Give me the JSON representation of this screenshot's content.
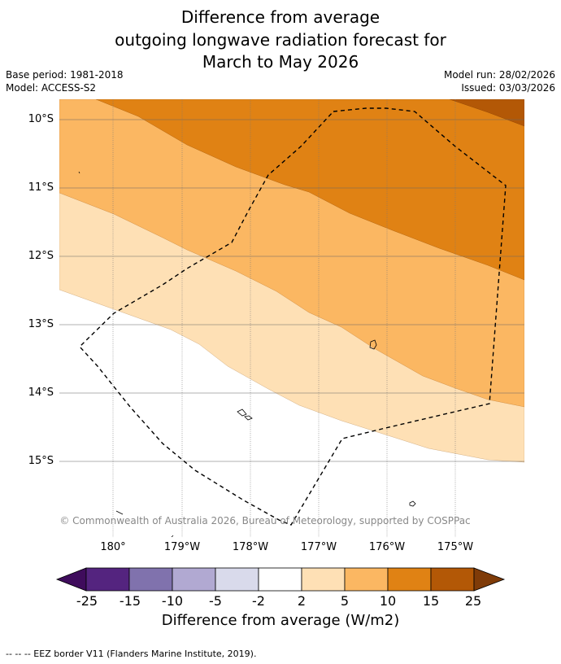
{
  "title_lines": [
    "Difference from average",
    "outgoing longwave radiation forecast for",
    "March to May 2026"
  ],
  "meta": {
    "base_period": "Base period: 1981-2018",
    "model": "Model: ACCESS-S2",
    "model_run": "Model run: 28/02/2026",
    "issued": "Issued: 03/03/2026"
  },
  "lat_labels": [
    "10°S",
    "11°S",
    "12°S",
    "13°S",
    "14°S",
    "15°S"
  ],
  "lon_labels": [
    "180°",
    "179°W",
    "178°W",
    "177°W",
    "176°W",
    "175°W"
  ],
  "attribution": "© Commonwealth of Australia 2026, Bureau of Meteorology, supported by COSPPac",
  "colorbar": {
    "title": "Difference from average (W/m2)",
    "ticks": [
      "-25",
      "-15",
      "-10",
      "-5",
      "-2",
      "2",
      "5",
      "10",
      "15",
      "25"
    ],
    "colors": [
      "#3f0c5c",
      "#54247f",
      "#8072ad",
      "#b1a9d2",
      "#d9daeb",
      "#ffffff",
      "#fee0b5",
      "#fbb762",
      "#e08214",
      "#b35806",
      "#7f3b08"
    ]
  },
  "legend_note": "--  --  -- EEZ border V11 (Flanders Marine Institute, 2019)."
}
